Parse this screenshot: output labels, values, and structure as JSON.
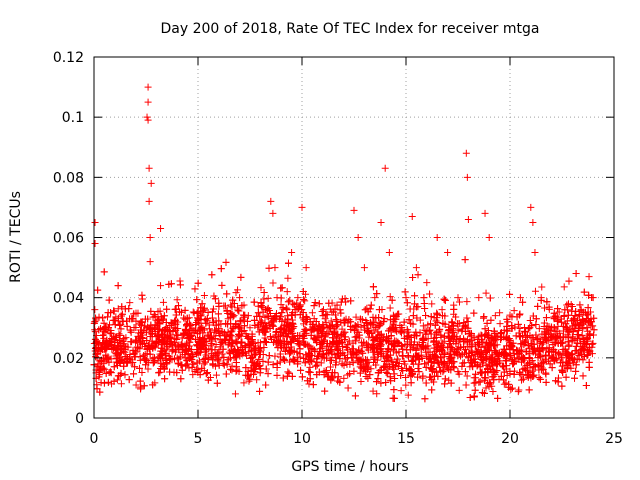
{
  "chart_data": {
    "type": "scatter",
    "title": "Day 200 of 2018, Rate Of TEC Index for receiver mtga",
    "xlabel": "GPS time / hours",
    "ylabel": "ROTI / TECUs",
    "xlim": [
      0,
      25
    ],
    "ylim": [
      0,
      0.12
    ],
    "x_ticks": [
      0,
      5,
      10,
      15,
      20,
      25
    ],
    "y_ticks": [
      0,
      0.02,
      0.04,
      0.06,
      0.08,
      0.1,
      0.12
    ],
    "x_tick_labels": [
      "0",
      "5",
      "10",
      "15",
      "20",
      "25"
    ],
    "y_tick_labels": [
      "0",
      "0.02",
      "0.04",
      "0.06",
      "0.08",
      "0.1",
      "0.12"
    ],
    "grid": true,
    "marker": "plus",
    "color": "#ff0000",
    "series": [
      {
        "name": "ROTI",
        "x": [
          0.05,
          0.05,
          0.1,
          0.1,
          0.15,
          0.2,
          0.3,
          0.5,
          0.8,
          1.2,
          1.6,
          2.0,
          2.55,
          2.6,
          2.6,
          2.6,
          2.65,
          2.65,
          2.7,
          2.7,
          2.75,
          2.8,
          3.2,
          3.2,
          3.3,
          3.5,
          4.0,
          4.5,
          5.0,
          5.5,
          6.0,
          6.5,
          6.8,
          7.0,
          7.5,
          8.0,
          8.5,
          8.6,
          8.7,
          8.8,
          9.0,
          9.5,
          9.8,
          10.0,
          10.2,
          10.5,
          11.0,
          11.5,
          12.0,
          12.5,
          12.7,
          13.0,
          13.5,
          13.8,
          14.0,
          14.2,
          14.5,
          15.0,
          15.3,
          15.5,
          16.0,
          16.5,
          17.0,
          17.5,
          17.9,
          17.95,
          18.0,
          18.0,
          18.5,
          18.8,
          19.0,
          19.5,
          20.0,
          20.5,
          21.0,
          21.1,
          21.2,
          21.5,
          22.0,
          22.5,
          23.0,
          23.5,
          23.8,
          24.0
        ],
        "y": [
          0.065,
          0.058,
          0.025,
          0.015,
          0.02,
          0.018,
          0.022,
          0.03,
          0.035,
          0.028,
          0.02,
          0.025,
          0.1,
          0.099,
          0.11,
          0.105,
          0.083,
          0.072,
          0.06,
          0.052,
          0.078,
          0.03,
          0.063,
          0.044,
          0.02,
          0.018,
          0.02,
          0.018,
          0.016,
          0.02,
          0.022,
          0.025,
          0.008,
          0.04,
          0.03,
          0.025,
          0.072,
          0.068,
          0.05,
          0.04,
          0.03,
          0.055,
          0.04,
          0.07,
          0.05,
          0.035,
          0.03,
          0.025,
          0.028,
          0.069,
          0.06,
          0.05,
          0.04,
          0.065,
          0.083,
          0.055,
          0.03,
          0.04,
          0.067,
          0.05,
          0.045,
          0.06,
          0.055,
          0.04,
          0.088,
          0.08,
          0.066,
          0.02,
          0.04,
          0.068,
          0.06,
          0.035,
          0.025,
          0.04,
          0.07,
          0.065,
          0.055,
          0.04,
          0.03,
          0.025,
          0.02,
          0.03,
          0.047,
          0.04
        ],
        "baseline_level": 0.022,
        "point_count_approx": 4800
      }
    ]
  }
}
